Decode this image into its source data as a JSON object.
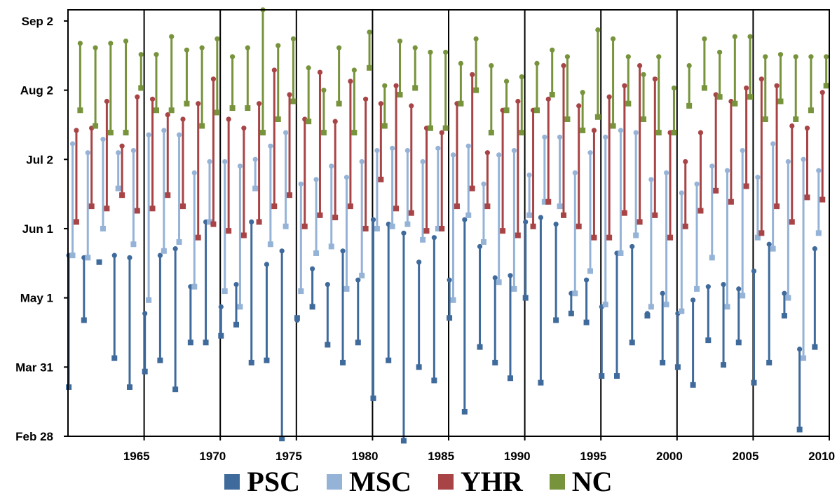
{
  "colors": {
    "PSC": "#3f6a9c",
    "MSC": "#95b3d7",
    "YHR": "#a84446",
    "NC": "#77933c",
    "axis": "#000000",
    "separator": "#000000"
  },
  "chart_data": {
    "type": "scatter",
    "title": "",
    "xlabel": "",
    "ylabel": "",
    "x_ticks": [
      "1965",
      "1970",
      "1975",
      "1980",
      "1985",
      "1990",
      "1995",
      "2000",
      "2005",
      "2010"
    ],
    "y_ticks": [
      "Feb 28",
      "Mar 31",
      "May 1",
      "Jun 1",
      "Jul 2",
      "Aug 2",
      "Sep 2"
    ],
    "y_tick_doy": [
      59,
      90,
      121,
      152,
      183,
      214,
      245
    ],
    "xlim": [
      1960.5,
      2010.5
    ],
    "ylim_doy": [
      59,
      250
    ],
    "grid": false,
    "legend_position": "bottom",
    "decade_separators": [
      1965.5,
      1970.5,
      1975.5,
      1980.5,
      1985.5,
      1990.5,
      1995.5,
      2000.5,
      2005.5
    ],
    "series_names": [
      "PSC",
      "MSC",
      "YHR",
      "NC"
    ],
    "years": [
      1961,
      1962,
      1963,
      1964,
      1965,
      1966,
      1967,
      1968,
      1969,
      1970,
      1971,
      1972,
      1973,
      1974,
      1975,
      1976,
      1977,
      1978,
      1979,
      1980,
      1981,
      1982,
      1983,
      1984,
      1985,
      1986,
      1987,
      1988,
      1989,
      1990,
      1991,
      1992,
      1993,
      1994,
      1995,
      1996,
      1997,
      1998,
      1999,
      2000,
      2001,
      2002,
      2003,
      2004,
      2005,
      2006,
      2007,
      2008,
      2009,
      2010
    ],
    "series": [
      {
        "name": "PSC",
        "values": [
          [
            81,
            140
          ],
          [
            111,
            139
          ],
          [
            137,
            137
          ],
          [
            94,
            140
          ],
          [
            81,
            139
          ],
          [
            88,
            114
          ],
          [
            93,
            140
          ],
          [
            80,
            143
          ],
          [
            101,
            126
          ],
          [
            101,
            155
          ],
          [
            104,
            117
          ],
          [
            109,
            127
          ],
          [
            92,
            155
          ],
          [
            93,
            136
          ],
          [
            58,
            142
          ],
          [
            112,
            111
          ],
          [
            117,
            134
          ],
          [
            100,
            127
          ],
          [
            92,
            142
          ],
          [
            101,
            129
          ],
          [
            76,
            156
          ],
          [
            93,
            154
          ],
          [
            57,
            150
          ],
          [
            90,
            137
          ],
          [
            84,
            148
          ],
          [
            112,
            129
          ],
          [
            70,
            156
          ],
          [
            99,
            144
          ],
          [
            92,
            130
          ],
          [
            85,
            131
          ],
          [
            121,
            155
          ],
          [
            83,
            157
          ],
          [
            111,
            154
          ],
          [
            114,
            123
          ],
          [
            110,
            129
          ],
          [
            86,
            117
          ],
          [
            86,
            141
          ],
          [
            101,
            144
          ],
          [
            113,
            114
          ],
          [
            92,
            123
          ],
          [
            90,
            114
          ],
          [
            82,
            120
          ],
          [
            102,
            126
          ],
          [
            91,
            127
          ],
          [
            101,
            125
          ],
          [
            83,
            133
          ],
          [
            92,
            145
          ],
          [
            113,
            123
          ],
          [
            62,
            98
          ],
          [
            99,
            143
          ]
        ]
      },
      {
        "name": "MSC",
        "values": [
          [
            140,
            190
          ],
          [
            139,
            186
          ],
          [
            152,
            192
          ],
          [
            170,
            186
          ],
          [
            145,
            187
          ],
          [
            120,
            194
          ],
          [
            142,
            196
          ],
          [
            146,
            194
          ],
          [
            126,
            177
          ],
          [
            155,
            182
          ],
          [
            124,
            182
          ],
          [
            117,
            180
          ],
          [
            170,
            183
          ],
          [
            145,
            189
          ],
          [
            153,
            195
          ],
          [
            124,
            172
          ],
          [
            141,
            174
          ],
          [
            144,
            180
          ],
          [
            125,
            175
          ],
          [
            131,
            182
          ],
          [
            152,
            187
          ],
          [
            153,
            188
          ],
          [
            154,
            187
          ],
          [
            147,
            182
          ],
          [
            152,
            188
          ],
          [
            120,
            185
          ],
          [
            158,
            189
          ],
          [
            146,
            172
          ],
          [
            128,
            185
          ],
          [
            125,
            187
          ],
          [
            158,
            176
          ],
          [
            164,
            193
          ],
          [
            162,
            193
          ],
          [
            123,
            177
          ],
          [
            133,
            186
          ],
          [
            118,
            193
          ],
          [
            141,
            196
          ],
          [
            149,
            195
          ],
          [
            117,
            174
          ],
          [
            118,
            177
          ],
          [
            115,
            168
          ],
          [
            125,
            172
          ],
          [
            139,
            180
          ],
          [
            117,
            178
          ],
          [
            122,
            187
          ],
          [
            148,
            175
          ],
          [
            143,
            190
          ],
          [
            121,
            182
          ],
          [
            94,
            183
          ],
          [
            150,
            178
          ]
        ]
      },
      {
        "name": "YHR",
        "values": [
          [
            155,
            196
          ],
          [
            162,
            197
          ],
          [
            161,
            209
          ],
          [
            167,
            189
          ],
          [
            160,
            211
          ],
          [
            161,
            210
          ],
          [
            167,
            203
          ],
          [
            162,
            201
          ],
          [
            148,
            208
          ],
          [
            154,
            219
          ],
          [
            151,
            201
          ],
          [
            149,
            197
          ],
          [
            155,
            208
          ],
          [
            162,
            223
          ],
          [
            167,
            212
          ],
          [
            153,
            201
          ],
          [
            158,
            222
          ],
          [
            157,
            200
          ],
          [
            162,
            218
          ],
          [
            152,
            210
          ],
          [
            174,
            208
          ],
          [
            161,
            216
          ],
          [
            159,
            207
          ],
          [
            151,
            197
          ],
          [
            152,
            195
          ],
          [
            162,
            208
          ],
          [
            170,
            221
          ],
          [
            162,
            186
          ],
          [
            151,
            205
          ],
          [
            149,
            209
          ],
          [
            153,
            205
          ],
          [
            164,
            210
          ],
          [
            158,
            225
          ],
          [
            153,
            207
          ],
          [
            148,
            196
          ],
          [
            148,
            211
          ],
          [
            159,
            216
          ],
          [
            155,
            225
          ],
          [
            158,
            219
          ],
          [
            148,
            195
          ],
          [
            153,
            182
          ],
          [
            160,
            195
          ],
          [
            169,
            212
          ],
          [
            164,
            209
          ],
          [
            171,
            215
          ],
          [
            150,
            219
          ],
          [
            162,
            216
          ],
          [
            155,
            198
          ],
          [
            166,
            197
          ],
          [
            165,
            213
          ]
        ]
      },
      {
        "name": "NC",
        "values": [
          [
            205,
            235
          ],
          [
            198,
            233
          ],
          [
            195,
            235
          ],
          [
            195,
            236
          ],
          [
            215,
            230
          ],
          [
            205,
            230
          ],
          [
            205,
            238
          ],
          [
            208,
            232
          ],
          [
            198,
            233
          ],
          [
            204,
            237
          ],
          [
            206,
            229
          ],
          [
            206,
            233
          ],
          [
            195,
            250
          ],
          [
            201,
            234
          ],
          [
            209,
            237
          ],
          [
            200,
            224
          ],
          [
            195,
            214
          ],
          [
            208,
            233
          ],
          [
            195,
            223
          ],
          [
            224,
            240
          ],
          [
            198,
            216
          ],
          [
            212,
            236
          ],
          [
            215,
            233
          ],
          [
            197,
            231
          ],
          [
            197,
            231
          ],
          [
            208,
            226
          ],
          [
            214,
            237
          ],
          [
            195,
            225
          ],
          [
            205,
            218
          ],
          [
            195,
            220
          ],
          [
            205,
            226
          ],
          [
            212,
            232
          ],
          [
            201,
            229
          ],
          [
            196,
            213
          ],
          [
            202,
            241
          ],
          [
            198,
            237
          ],
          [
            208,
            229
          ],
          [
            201,
            221
          ],
          [
            195,
            229
          ],
          [
            195,
            215
          ],
          [
            207,
            225
          ],
          [
            215,
            237
          ],
          [
            211,
            231
          ],
          [
            208,
            238
          ],
          [
            211,
            238
          ],
          [
            201,
            229
          ],
          [
            209,
            230
          ],
          [
            201,
            229
          ],
          [
            205,
            229
          ],
          [
            216,
            229
          ]
        ]
      }
    ]
  },
  "legend": {
    "items": [
      {
        "label": "PSC",
        "color_key": "PSC"
      },
      {
        "label": "MSC",
        "color_key": "MSC"
      },
      {
        "label": "YHR",
        "color_key": "YHR"
      },
      {
        "label": "NC",
        "color_key": "NC"
      }
    ]
  }
}
